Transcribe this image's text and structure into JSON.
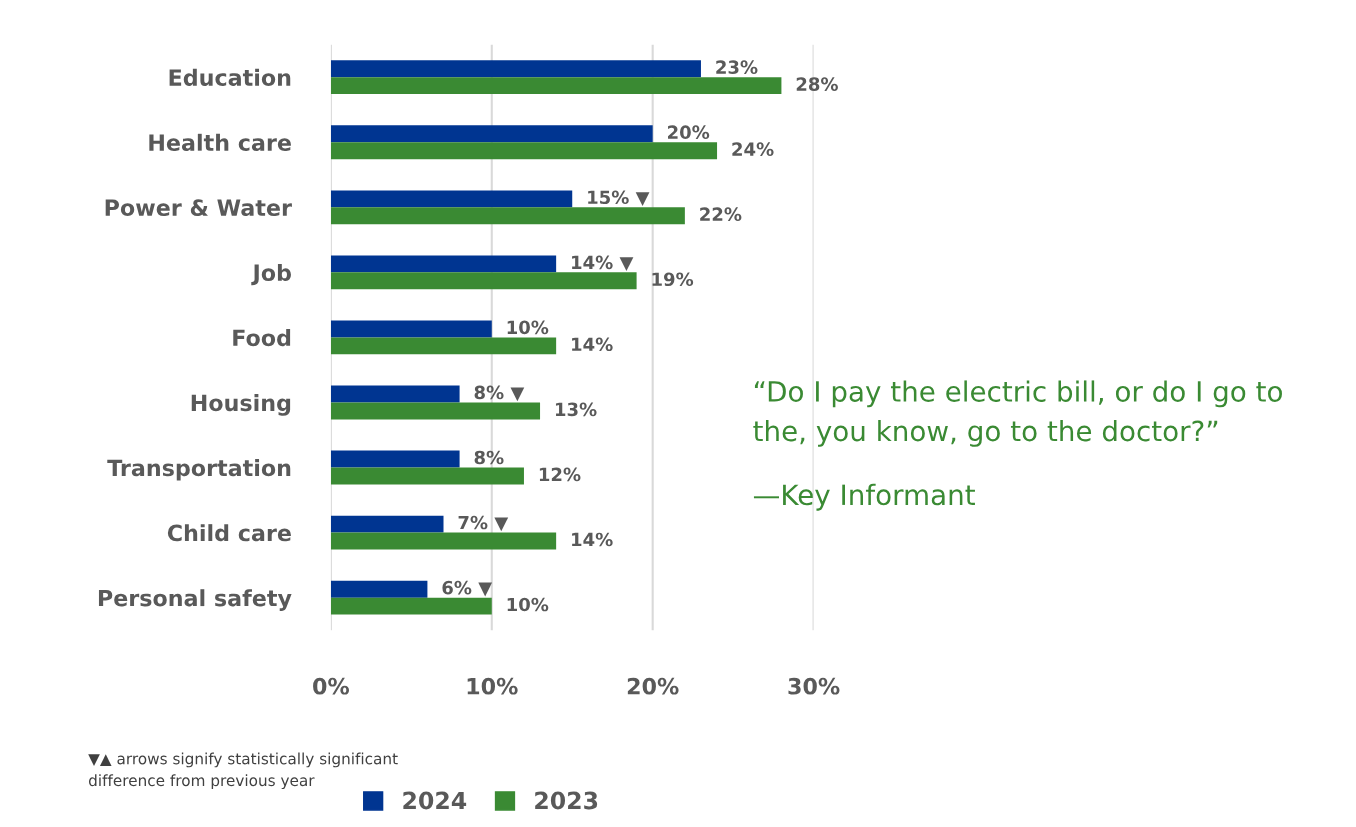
{
  "chart_data": {
    "type": "bar",
    "orientation": "horizontal",
    "categories": [
      "Education",
      "Health care",
      "Power & Water",
      "Job",
      "Food",
      "Housing",
      "Transportation",
      "Child care",
      "Personal safety"
    ],
    "series": [
      {
        "name": "2024",
        "color": "#003591",
        "values": [
          23,
          20,
          15,
          14,
          10,
          8,
          8,
          7,
          6
        ],
        "value_labels": [
          "23%",
          "20%",
          "15% ▼",
          "14% ▼",
          "10%",
          "8% ▼",
          "8%",
          "7% ▼",
          "6% ▼"
        ]
      },
      {
        "name": "2023",
        "color": "#3a8a33",
        "values": [
          28,
          24,
          22,
          19,
          14,
          13,
          12,
          14,
          10
        ],
        "value_labels": [
          "28%",
          "24%",
          "22%",
          "19%",
          "14%",
          "13%",
          "12%",
          "14%",
          "10%"
        ]
      }
    ],
    "xlim": [
      0,
      30
    ],
    "xticks": [
      {
        "value": 0,
        "label": "0%"
      },
      {
        "value": 10,
        "label": "10%"
      },
      {
        "value": 20,
        "label": "20%"
      },
      {
        "value": 30,
        "label": "30%"
      }
    ],
    "grid": "x",
    "legend": "bottom",
    "annotations": [
      "“Do I pay the electric bill, or do I go to the, you know, go to the doctor?”",
      "—Key Informant",
      "▼▲ arrows signify statistically significant difference from previous year"
    ]
  }
}
